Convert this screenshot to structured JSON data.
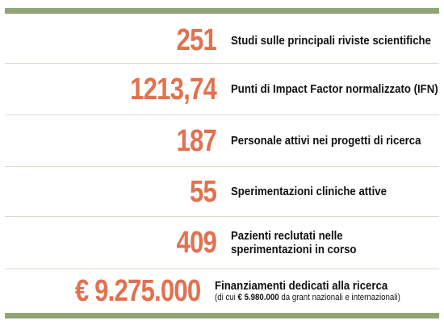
{
  "stats": [
    {
      "value": "251",
      "label": "Studi sulle principali riviste scientifiche"
    },
    {
      "value": "1213,74",
      "label": "Punti di Impact Factor normalizzato (IFN)"
    },
    {
      "value": "187",
      "label": "Personale attivi nei progetti di ricerca"
    },
    {
      "value": "55",
      "label": "Sperimentazioni cliniche attive"
    },
    {
      "value": "409",
      "label": "Pazienti reclutati nelle sperimentazioni in corso"
    },
    {
      "value": "€ 9.275.000",
      "label": "Finanziamenti dedicati alla ricerca",
      "note_prefix": "(di cui ",
      "note_amount": "€ 5.980.000",
      "note_suffix": " da grant nazionali e internazionali)"
    }
  ],
  "colors": {
    "accent_number": "#e2714f",
    "rule_bar": "#8fa577",
    "text": "#111111"
  }
}
